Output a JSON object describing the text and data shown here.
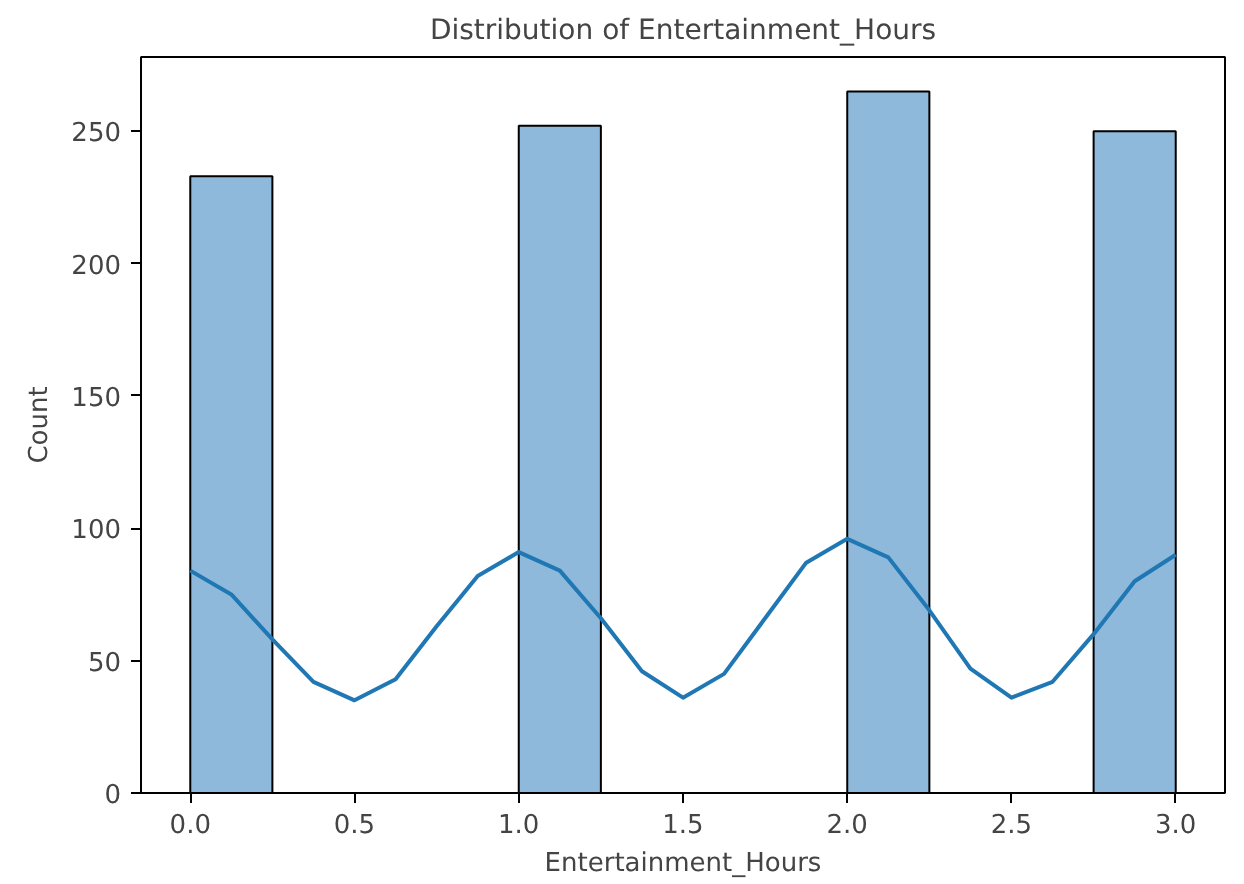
{
  "chart_data": {
    "type": "histogram",
    "title": "Distribution of Entertainment_Hours",
    "xlabel": "Entertainment_Hours",
    "ylabel": "Count",
    "bins": [
      0,
      0.25,
      0.5,
      0.75,
      1.0,
      1.25,
      1.5,
      1.75,
      2.0,
      2.25,
      2.5,
      2.75,
      3.0
    ],
    "values": [
      233,
      0,
      0,
      0,
      252,
      0,
      0,
      0,
      265,
      0,
      0,
      250
    ],
    "color": "#8fb9da",
    "series": [
      {
        "type": "line",
        "color": "#1f77b4",
        "x": [
          0,
          0.125,
          0.25,
          0.375,
          0.5,
          0.625,
          0.75,
          0.875,
          1.0,
          1.125,
          1.25,
          1.375,
          1.5,
          1.625,
          1.75,
          1.875,
          2.0,
          2.125,
          2.25,
          2.375,
          2.5,
          2.625,
          2.75,
          2.875,
          3.0
        ],
        "values": [
          84,
          75,
          58,
          42,
          35,
          43,
          63,
          82,
          91,
          84,
          66,
          46,
          36,
          45,
          66,
          87,
          96,
          89,
          69,
          47,
          36,
          42,
          60,
          80,
          90
        ]
      }
    ],
    "xlim": [
      -0.15,
      3.15
    ],
    "ylim": [
      0,
      278
    ],
    "xticks": [
      {
        "value": 0,
        "label": "0.0"
      },
      0.5,
      {
        "value": 1,
        "label": "1.0"
      },
      1.5,
      {
        "value": 2,
        "label": "2.0"
      },
      2.5,
      {
        "value": 3,
        "label": "3.0"
      }
    ],
    "yticks": [
      0,
      50,
      100,
      150,
      200,
      250
    ],
    "grid": false
  }
}
